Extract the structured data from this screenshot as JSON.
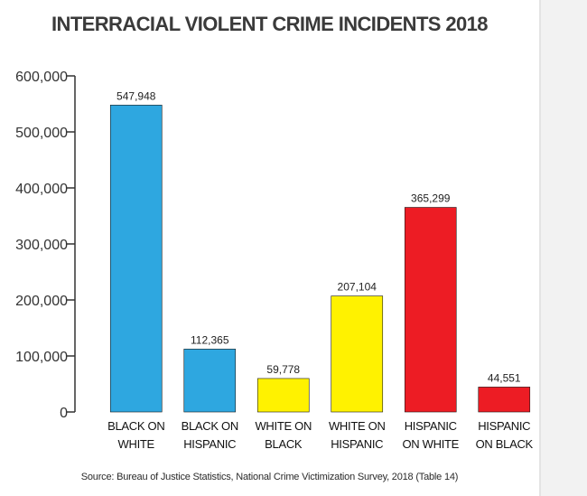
{
  "chart_data": {
    "type": "bar",
    "title": "INTERRACIAL VIOLENT CRIME INCIDENTS 2018",
    "categories": [
      [
        "BLACK ON",
        "WHITE"
      ],
      [
        "BLACK ON",
        "HISPANIC"
      ],
      [
        "WHITE ON",
        "BLACK"
      ],
      [
        "WHITE ON",
        "HISPANIC"
      ],
      [
        "HISPANIC",
        "ON WHITE"
      ],
      [
        "HISPANIC",
        "ON BLACK"
      ]
    ],
    "values": [
      547948,
      112365,
      59778,
      207104,
      365299,
      44551
    ],
    "value_labels": [
      "547,948",
      "112,365",
      "59,778",
      "207,104",
      "365,299",
      "44,551"
    ],
    "colors": [
      "#2ea7e0",
      "#2ea7e0",
      "#fff200",
      "#fff200",
      "#ed1c24",
      "#ed1c24"
    ],
    "ylim": [
      0,
      600000
    ],
    "yticks": [
      0,
      100000,
      200000,
      300000,
      400000,
      500000,
      600000
    ],
    "ytick_labels": [
      "0",
      "100,000",
      "200,000",
      "300,000",
      "400,000",
      "500,000",
      "600,000"
    ],
    "xlabel": "",
    "ylabel": "",
    "grid": false,
    "source": "Source: Bureau of Justice Statistics, National Crime Victimization Survey, 2018 (Table 14)"
  }
}
